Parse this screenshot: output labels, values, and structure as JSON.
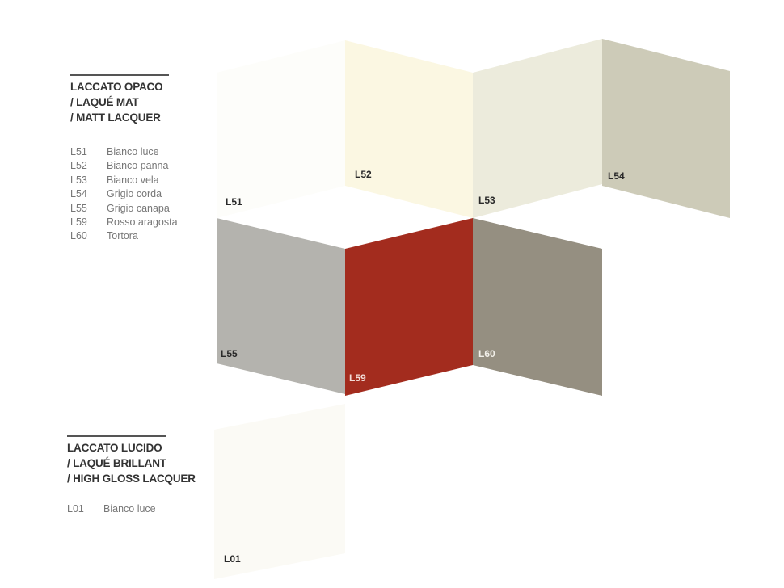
{
  "sections": [
    {
      "title_lines": [
        "LACCATO OPACO",
        "/ LAQUÉ MAT",
        "/ MATT LACQUER"
      ],
      "items": [
        {
          "code": "L51",
          "name": "Bianco luce"
        },
        {
          "code": "L52",
          "name": "Bianco panna"
        },
        {
          "code": "L53",
          "name": "Bianco vela"
        },
        {
          "code": "L54",
          "name": "Grigio corda"
        },
        {
          "code": "L55",
          "name": "Grigio canapa"
        },
        {
          "code": "L59",
          "name": "Rosso aragosta"
        },
        {
          "code": "L60",
          "name": "Tortora"
        }
      ]
    },
    {
      "title_lines": [
        "LACCATO LUCIDO",
        "/ LAQUÉ BRILLANT",
        "/ HIGH GLOSS LACQUER"
      ],
      "items": [
        {
          "code": "L01",
          "name": "Bianco luce"
        }
      ]
    }
  ],
  "swatches": [
    {
      "code": "L51",
      "color": "#fdfdfa",
      "label_color": "#2a2a2a"
    },
    {
      "code": "L52",
      "color": "#fbf7e2",
      "label_color": "#2a2a2a"
    },
    {
      "code": "L53",
      "color": "#ecebdc",
      "label_color": "#2a2a2a"
    },
    {
      "code": "L54",
      "color": "#cdcbb8",
      "label_color": "#2a2a2a"
    },
    {
      "code": "L55",
      "color": "#b4b3ae",
      "label_color": "#2a2a2a"
    },
    {
      "code": "L59",
      "color": "#a32c1e",
      "label_color": "#f3ddd8"
    },
    {
      "code": "L60",
      "color": "#958f81",
      "label_color": "#f2f0ea"
    },
    {
      "code": "L01",
      "color": "#fbfaf5",
      "label_color": "#2a2a2a"
    }
  ]
}
